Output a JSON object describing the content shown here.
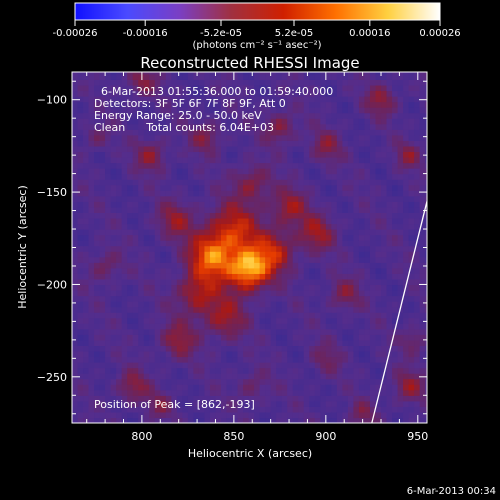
{
  "chart_data": {
    "type": "heatmap",
    "title": "Reconstructed RHESSI Image",
    "xlabel": "Heliocentric X (arcsec)",
    "ylabel": "Heliocentric Y (arcsec)",
    "xlim": [
      762,
      955
    ],
    "ylim": [
      -275,
      -85
    ],
    "x_ticks": [
      800,
      850,
      900,
      950
    ],
    "y_ticks": [
      -100,
      -150,
      -200,
      -250
    ],
    "colorbar": {
      "ticks": [
        "-0.00026",
        "-0.00016",
        "-5.2e-05",
        "5.2e-05",
        "0.00016",
        "0.00026"
      ],
      "range": [
        -0.00026,
        0.00026
      ],
      "unit_label": "(photons cm⁻² s⁻¹ asec⁻²)",
      "colors": [
        "#1010ff",
        "#4a4aff",
        "#7a3fc4",
        "#a03040",
        "#d02000",
        "#ff7000",
        "#ffd040",
        "#ffffff"
      ]
    },
    "annotations": [
      "6-Mar-2013 01:55:36.000 to 01:59:40.000",
      "Detectors: 3F 5F 6F 7F 8F 9F, Att 0",
      "Energy Range: 25.0 - 50.0 keV",
      "Clean      Total counts: 6.04E+03",
      "Position of Peak = [862,-193]"
    ],
    "peak": [
      862,
      -193
    ],
    "blobs": [
      {
        "x": 858,
        "y": -192,
        "amp": 1.0,
        "sx": 8
      },
      {
        "x": 838,
        "y": -185,
        "amp": 0.8,
        "sx": 9
      },
      {
        "x": 850,
        "y": -170,
        "amp": 0.6,
        "sx": 10
      },
      {
        "x": 872,
        "y": -182,
        "amp": 0.55,
        "sx": 8
      },
      {
        "x": 830,
        "y": -205,
        "amp": 0.5,
        "sx": 8
      },
      {
        "x": 880,
        "y": -158,
        "amp": 0.45,
        "sx": 7
      },
      {
        "x": 895,
        "y": -172,
        "amp": 0.45,
        "sx": 7
      },
      {
        "x": 818,
        "y": -165,
        "amp": 0.4,
        "sx": 7
      },
      {
        "x": 805,
        "y": -130,
        "amp": 0.4,
        "sx": 6
      },
      {
        "x": 860,
        "y": -145,
        "amp": 0.4,
        "sx": 7
      },
      {
        "x": 845,
        "y": -218,
        "amp": 0.45,
        "sx": 8
      },
      {
        "x": 820,
        "y": -230,
        "amp": 0.4,
        "sx": 7
      },
      {
        "x": 835,
        "y": -120,
        "amp": 0.35,
        "sx": 6
      },
      {
        "x": 875,
        "y": -115,
        "amp": 0.4,
        "sx": 6
      },
      {
        "x": 900,
        "y": -125,
        "amp": 0.35,
        "sx": 6
      },
      {
        "x": 910,
        "y": -205,
        "amp": 0.35,
        "sx": 6
      },
      {
        "x": 930,
        "y": -100,
        "amp": 0.4,
        "sx": 6
      },
      {
        "x": 945,
        "y": -130,
        "amp": 0.35,
        "sx": 5
      },
      {
        "x": 800,
        "y": -90,
        "amp": 0.35,
        "sx": 6
      },
      {
        "x": 795,
        "y": -255,
        "amp": 0.4,
        "sx": 6
      },
      {
        "x": 810,
        "y": -265,
        "amp": 0.3,
        "sx": 5
      },
      {
        "x": 945,
        "y": -255,
        "amp": 0.4,
        "sx": 6
      },
      {
        "x": 948,
        "y": -230,
        "amp": 0.3,
        "sx": 5
      },
      {
        "x": 920,
        "y": -270,
        "amp": 0.3,
        "sx": 5
      },
      {
        "x": 860,
        "y": -255,
        "amp": 0.25,
        "sx": 6
      },
      {
        "x": 900,
        "y": -240,
        "amp": 0.25,
        "sx": 6
      },
      {
        "x": 780,
        "y": -190,
        "amp": 0.3,
        "sx": 6
      },
      {
        "x": 775,
        "y": -120,
        "amp": 0.25,
        "sx": 5
      }
    ],
    "limb_line": [
      [
        925,
        -275
      ],
      [
        955,
        -155
      ]
    ]
  },
  "footer": {
    "timestamp": "6-Mar-2013 00:34"
  }
}
